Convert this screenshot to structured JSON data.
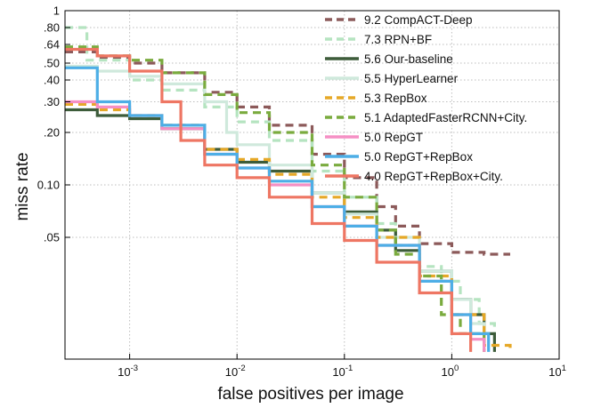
{
  "chart_data": {
    "type": "line",
    "title": "",
    "xlabel": "false positives per image",
    "ylabel": "miss rate",
    "x_scale": "log",
    "y_scale": "log",
    "xlim": [
      0.00025,
      10
    ],
    "ylim": [
      0.01,
      1
    ],
    "grid": true,
    "legend_position": "top-right",
    "x_ticks": [
      {
        "value": 0.001,
        "base": "10",
        "exp": "-3"
      },
      {
        "value": 0.01,
        "base": "10",
        "exp": "-2"
      },
      {
        "value": 0.1,
        "base": "10",
        "exp": "-1"
      },
      {
        "value": 1,
        "base": "10",
        "exp": "0"
      },
      {
        "value": 10,
        "base": "10",
        "exp": "1"
      }
    ],
    "y_ticks": [
      {
        "value": 1,
        "label": "1"
      },
      {
        "value": 0.8,
        "label": ".80"
      },
      {
        "value": 0.64,
        "label": ".64"
      },
      {
        "value": 0.5,
        "label": ".50"
      },
      {
        "value": 0.4,
        "label": ".40"
      },
      {
        "value": 0.3,
        "label": ".30"
      },
      {
        "value": 0.2,
        "label": ".20"
      },
      {
        "value": 0.1,
        "label": "0.10"
      },
      {
        "value": 0.05,
        "label": ".05"
      }
    ],
    "series": [
      {
        "name": "9.2 CompACT-Deep",
        "color": "#8c5a5a",
        "dash": "dashed",
        "x": [
          0.00025,
          0.0005,
          0.001,
          0.002,
          0.005,
          0.01,
          0.02,
          0.05,
          0.1,
          0.2,
          0.3,
          0.5,
          1,
          2,
          3.5
        ],
        "y": [
          0.58,
          0.54,
          0.5,
          0.44,
          0.34,
          0.28,
          0.22,
          0.15,
          0.11,
          0.075,
          0.058,
          0.046,
          0.041,
          0.04,
          0.04
        ]
      },
      {
        "name": "7.3 RPN+BF",
        "color": "#b5e4c0",
        "dash": "dashed",
        "x": [
          0.00025,
          0.0004,
          0.001,
          0.002,
          0.005,
          0.01,
          0.02,
          0.05,
          0.1,
          0.2,
          0.3,
          0.5,
          0.8,
          1.2,
          1.8,
          2.5
        ],
        "y": [
          0.8,
          0.52,
          0.4,
          0.35,
          0.28,
          0.23,
          0.18,
          0.12,
          0.085,
          0.06,
          0.045,
          0.034,
          0.028,
          0.022,
          0.016,
          0.012
        ]
      },
      {
        "name": "5.6 Our-baseline",
        "color": "#3d5c3a",
        "dash": "solid",
        "x": [
          0.00025,
          0.0005,
          0.001,
          0.002,
          0.005,
          0.01,
          0.02,
          0.05,
          0.1,
          0.2,
          0.3,
          0.5,
          1,
          1.5,
          2,
          2.5
        ],
        "y": [
          0.27,
          0.25,
          0.24,
          0.21,
          0.16,
          0.135,
          0.12,
          0.09,
          0.07,
          0.055,
          0.042,
          0.032,
          0.022,
          0.018,
          0.014,
          0.011
        ]
      },
      {
        "name": "5.5 HyperLearner",
        "color": "#cfe9dc",
        "dash": "solid",
        "x": [
          0.00025,
          0.0005,
          0.001,
          0.002,
          0.005,
          0.008,
          0.01,
          0.02,
          0.05,
          0.1,
          0.2,
          0.5,
          1,
          1.5,
          2
        ],
        "y": [
          0.48,
          0.45,
          0.42,
          0.38,
          0.3,
          0.2,
          0.17,
          0.13,
          0.09,
          0.068,
          0.05,
          0.032,
          0.022,
          0.016,
          0.012
        ]
      },
      {
        "name": "5.3 RepBox",
        "color": "#e6a827",
        "dash": "dashed",
        "x": [
          0.00025,
          0.0005,
          0.001,
          0.002,
          0.005,
          0.01,
          0.02,
          0.05,
          0.1,
          0.2,
          0.5,
          1,
          2,
          3.5
        ],
        "y": [
          0.29,
          0.27,
          0.25,
          0.22,
          0.16,
          0.14,
          0.115,
          0.085,
          0.065,
          0.05,
          0.03,
          0.018,
          0.012,
          0.011
        ]
      },
      {
        "name": "5.1 AdaptedFasterRCNN+City.",
        "color": "#7aab3e",
        "dash": "dashed",
        "x": [
          0.00025,
          0.0005,
          0.001,
          0.002,
          0.005,
          0.01,
          0.02,
          0.05,
          0.1,
          0.2,
          0.3,
          0.5,
          0.8,
          1.2,
          2
        ],
        "y": [
          0.62,
          0.55,
          0.52,
          0.44,
          0.33,
          0.26,
          0.2,
          0.13,
          0.085,
          0.055,
          0.04,
          0.03,
          0.018,
          0.014,
          0.011
        ]
      },
      {
        "name": "5.0 RepGT",
        "color": "#f58fc4",
        "dash": "solid",
        "x": [
          0.00025,
          0.0005,
          0.001,
          0.002,
          0.005,
          0.01,
          0.02,
          0.05,
          0.1,
          0.2,
          0.5,
          1,
          1.5,
          2
        ],
        "y": [
          0.3,
          0.28,
          0.25,
          0.21,
          0.15,
          0.125,
          0.1,
          0.075,
          0.058,
          0.045,
          0.028,
          0.018,
          0.013,
          0.011
        ]
      },
      {
        "name": "5.0 RepGT+RepBox",
        "color": "#4daee6",
        "dash": "solid",
        "x": [
          0.00025,
          0.0005,
          0.001,
          0.002,
          0.005,
          0.01,
          0.02,
          0.05,
          0.1,
          0.2,
          0.5,
          1,
          1.5,
          2.2
        ],
        "y": [
          0.47,
          0.3,
          0.25,
          0.22,
          0.15,
          0.125,
          0.105,
          0.075,
          0.058,
          0.045,
          0.028,
          0.018,
          0.014,
          0.011
        ]
      },
      {
        "name": "4.0 RepGT+RepBox+City.",
        "color": "#ee7663",
        "dash": "solid",
        "x": [
          0.00025,
          0.0005,
          0.001,
          0.002,
          0.003,
          0.005,
          0.01,
          0.02,
          0.05,
          0.1,
          0.2,
          0.5,
          1,
          1.5
        ],
        "y": [
          0.6,
          0.55,
          0.45,
          0.3,
          0.18,
          0.13,
          0.11,
          0.085,
          0.06,
          0.048,
          0.036,
          0.024,
          0.014,
          0.011
        ]
      }
    ]
  }
}
